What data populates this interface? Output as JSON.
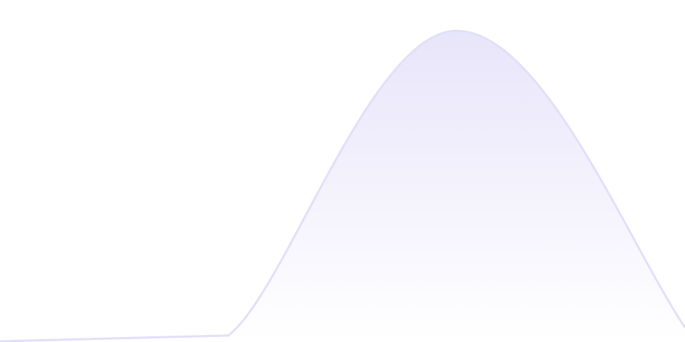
{
  "chart_data": {
    "type": "area",
    "title": "",
    "xlabel": "",
    "ylabel": "",
    "x": [
      0,
      1,
      2,
      3
    ],
    "series": [
      {
        "values": [
          0.2,
          1.9,
          91,
          4.2
        ]
      }
    ],
    "xlim": [
      0,
      3
    ],
    "ylim": [
      0,
      100
    ],
    "grid": false,
    "legend": "none",
    "colors": {
      "line": "#e2dff9",
      "fill_top": "#e8e5fa",
      "fill_bottom": "#ffffff"
    }
  }
}
